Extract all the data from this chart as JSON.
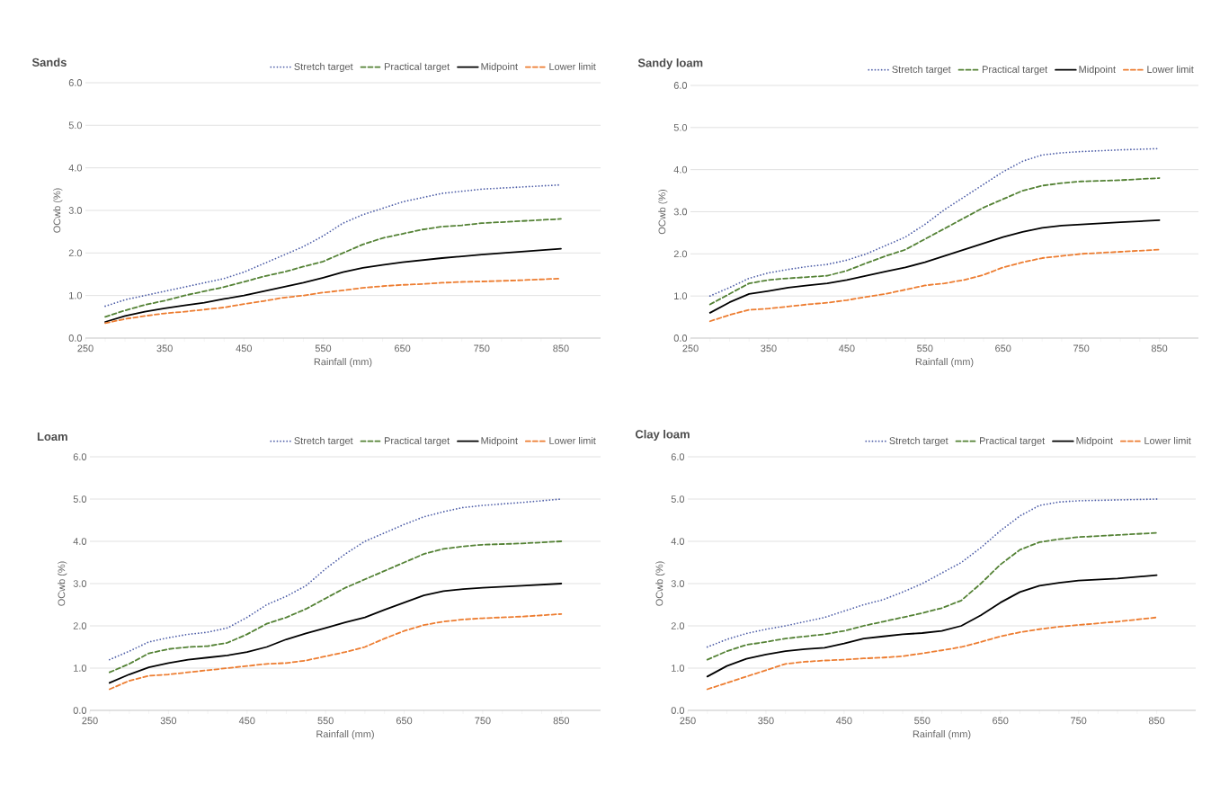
{
  "chart_data": [
    {
      "type": "line",
      "title": "Sands",
      "xlabel": "Rainfall (mm)",
      "ylabel": "OCwb (%)",
      "grid": "y",
      "legend": "top",
      "xlim": [
        250,
        900
      ],
      "ylim": [
        0,
        6
      ],
      "xticks": [
        250,
        350,
        450,
        550,
        650,
        750,
        850
      ],
      "yticks": [
        {
          "value": 0,
          "label": "0.0"
        },
        {
          "value": 1,
          "label": "1.0"
        },
        {
          "value": 2,
          "label": "2.0"
        },
        {
          "value": 3,
          "label": "3.0"
        },
        {
          "value": 4,
          "label": "4.0"
        },
        {
          "value": 5,
          "label": "5.0"
        },
        {
          "value": 6,
          "label": "6.0"
        }
      ],
      "x": [
        275,
        300,
        325,
        350,
        375,
        400,
        425,
        450,
        475,
        500,
        525,
        550,
        575,
        600,
        625,
        650,
        675,
        700,
        725,
        750,
        800,
        850
      ],
      "series": [
        {
          "name": "Stretch target",
          "color": "#4f5fa8",
          "line_style": "dotted",
          "values": [
            0.75,
            0.9,
            1.0,
            1.1,
            1.2,
            1.3,
            1.4,
            1.55,
            1.75,
            1.95,
            2.15,
            2.4,
            2.7,
            2.9,
            3.05,
            3.2,
            3.3,
            3.4,
            3.45,
            3.5,
            3.55,
            3.6
          ]
        },
        {
          "name": "Practical target",
          "color": "#548235",
          "line_style": "dashed",
          "values": [
            0.5,
            0.65,
            0.78,
            0.88,
            1.0,
            1.1,
            1.2,
            1.32,
            1.45,
            1.55,
            1.68,
            1.8,
            2.0,
            2.2,
            2.35,
            2.45,
            2.55,
            2.62,
            2.65,
            2.7,
            2.75,
            2.8
          ]
        },
        {
          "name": "Midpoint",
          "color": "#000000",
          "line_style": "solid",
          "values": [
            0.38,
            0.52,
            0.62,
            0.7,
            0.77,
            0.83,
            0.92,
            1.0,
            1.1,
            1.2,
            1.3,
            1.42,
            1.55,
            1.65,
            1.72,
            1.78,
            1.83,
            1.88,
            1.92,
            1.96,
            2.03,
            2.1
          ]
        },
        {
          "name": "Lower limit",
          "color": "#ed7d31",
          "line_style": "dashed",
          "values": [
            0.35,
            0.45,
            0.52,
            0.58,
            0.62,
            0.67,
            0.72,
            0.8,
            0.87,
            0.95,
            1.0,
            1.07,
            1.12,
            1.18,
            1.22,
            1.25,
            1.27,
            1.3,
            1.32,
            1.33,
            1.36,
            1.4
          ]
        }
      ]
    },
    {
      "type": "line",
      "title": "Sandy loam",
      "xlabel": "Rainfall (mm)",
      "ylabel": "OCwb (%)",
      "grid": "y",
      "legend": "top",
      "xlim": [
        250,
        900
      ],
      "ylim": [
        0,
        6
      ],
      "xticks": [
        250,
        350,
        450,
        550,
        650,
        750,
        850
      ],
      "yticks": [
        {
          "value": 0,
          "label": "0.0"
        },
        {
          "value": 1,
          "label": "1.0"
        },
        {
          "value": 2,
          "label": "2.0"
        },
        {
          "value": 3,
          "label": "3.0"
        },
        {
          "value": 4,
          "label": "4.0"
        },
        {
          "value": 5,
          "label": "5.0"
        },
        {
          "value": 6,
          "label": "6.0"
        }
      ],
      "x": [
        275,
        300,
        325,
        350,
        375,
        400,
        425,
        450,
        475,
        500,
        525,
        550,
        575,
        600,
        625,
        650,
        675,
        700,
        725,
        750,
        800,
        850
      ],
      "series": [
        {
          "name": "Stretch target",
          "color": "#4f5fa8",
          "line_style": "dotted",
          "values": [
            1.0,
            1.2,
            1.42,
            1.55,
            1.63,
            1.7,
            1.75,
            1.85,
            2.0,
            2.2,
            2.4,
            2.7,
            3.05,
            3.35,
            3.65,
            3.95,
            4.2,
            4.35,
            4.4,
            4.43,
            4.47,
            4.5
          ]
        },
        {
          "name": "Practical target",
          "color": "#548235",
          "line_style": "dashed",
          "values": [
            0.8,
            1.05,
            1.3,
            1.38,
            1.42,
            1.45,
            1.48,
            1.6,
            1.78,
            1.95,
            2.1,
            2.35,
            2.6,
            2.85,
            3.1,
            3.3,
            3.5,
            3.62,
            3.68,
            3.72,
            3.75,
            3.8
          ]
        },
        {
          "name": "Midpoint",
          "color": "#000000",
          "line_style": "solid",
          "values": [
            0.6,
            0.85,
            1.05,
            1.12,
            1.2,
            1.25,
            1.3,
            1.38,
            1.48,
            1.58,
            1.68,
            1.8,
            1.95,
            2.1,
            2.25,
            2.4,
            2.52,
            2.62,
            2.67,
            2.7,
            2.75,
            2.8
          ]
        },
        {
          "name": "Lower limit",
          "color": "#ed7d31",
          "line_style": "dashed",
          "values": [
            0.4,
            0.55,
            0.67,
            0.7,
            0.75,
            0.8,
            0.84,
            0.9,
            0.98,
            1.05,
            1.15,
            1.25,
            1.3,
            1.38,
            1.5,
            1.68,
            1.8,
            1.9,
            1.95,
            2.0,
            2.05,
            2.1
          ]
        }
      ]
    },
    {
      "type": "line",
      "title": "Loam",
      "xlabel": "Rainfall (mm)",
      "ylabel": "OCwb (%)",
      "grid": "y",
      "legend": "top",
      "xlim": [
        250,
        900
      ],
      "ylim": [
        0,
        6
      ],
      "xticks": [
        250,
        350,
        450,
        550,
        650,
        750,
        850
      ],
      "yticks": [
        {
          "value": 0,
          "label": "0.0"
        },
        {
          "value": 1,
          "label": "1.0"
        },
        {
          "value": 2,
          "label": "2.0"
        },
        {
          "value": 3,
          "label": "3.0"
        },
        {
          "value": 4,
          "label": "4.0"
        },
        {
          "value": 5,
          "label": "5.0"
        },
        {
          "value": 6,
          "label": "6.0"
        }
      ],
      "x": [
        275,
        300,
        325,
        350,
        375,
        400,
        425,
        450,
        475,
        500,
        525,
        550,
        575,
        600,
        625,
        650,
        675,
        700,
        725,
        750,
        800,
        850
      ],
      "series": [
        {
          "name": "Stretch target",
          "color": "#4f5fa8",
          "line_style": "dotted",
          "values": [
            1.2,
            1.4,
            1.62,
            1.72,
            1.8,
            1.85,
            1.95,
            2.2,
            2.5,
            2.7,
            2.95,
            3.35,
            3.7,
            4.0,
            4.2,
            4.4,
            4.58,
            4.7,
            4.8,
            4.85,
            4.92,
            5.0
          ]
        },
        {
          "name": "Practical target",
          "color": "#548235",
          "line_style": "dashed",
          "values": [
            0.9,
            1.1,
            1.35,
            1.45,
            1.5,
            1.52,
            1.6,
            1.8,
            2.05,
            2.2,
            2.4,
            2.65,
            2.9,
            3.1,
            3.3,
            3.5,
            3.7,
            3.82,
            3.88,
            3.92,
            3.95,
            4.0
          ]
        },
        {
          "name": "Midpoint",
          "color": "#000000",
          "line_style": "solid",
          "values": [
            0.65,
            0.85,
            1.02,
            1.12,
            1.2,
            1.25,
            1.3,
            1.38,
            1.5,
            1.68,
            1.82,
            1.95,
            2.08,
            2.2,
            2.38,
            2.55,
            2.72,
            2.82,
            2.87,
            2.9,
            2.95,
            3.0
          ]
        },
        {
          "name": "Lower limit",
          "color": "#ed7d31",
          "line_style": "dashed",
          "values": [
            0.5,
            0.7,
            0.82,
            0.85,
            0.9,
            0.95,
            1.0,
            1.05,
            1.1,
            1.12,
            1.18,
            1.28,
            1.38,
            1.5,
            1.7,
            1.88,
            2.02,
            2.1,
            2.15,
            2.18,
            2.22,
            2.28
          ]
        }
      ]
    },
    {
      "type": "line",
      "title": "Clay loam",
      "xlabel": "Rainfall (mm)",
      "ylabel": "OCwb (%)",
      "grid": "y",
      "legend": "top",
      "xlim": [
        250,
        900
      ],
      "ylim": [
        0,
        6
      ],
      "xticks": [
        250,
        350,
        450,
        550,
        650,
        750,
        850
      ],
      "yticks": [
        {
          "value": 0,
          "label": "0.0"
        },
        {
          "value": 1,
          "label": "1.0"
        },
        {
          "value": 2,
          "label": "2.0"
        },
        {
          "value": 3,
          "label": "3.0"
        },
        {
          "value": 4,
          "label": "4.0"
        },
        {
          "value": 5,
          "label": "5.0"
        },
        {
          "value": 6,
          "label": "6.0"
        }
      ],
      "x": [
        275,
        300,
        325,
        350,
        375,
        400,
        425,
        450,
        475,
        500,
        525,
        550,
        575,
        600,
        625,
        650,
        675,
        700,
        725,
        750,
        800,
        850
      ],
      "series": [
        {
          "name": "Stretch target",
          "color": "#4f5fa8",
          "line_style": "dotted",
          "values": [
            1.5,
            1.68,
            1.82,
            1.92,
            2.0,
            2.1,
            2.2,
            2.35,
            2.5,
            2.62,
            2.8,
            3.0,
            3.25,
            3.5,
            3.85,
            4.25,
            4.6,
            4.85,
            4.93,
            4.96,
            4.98,
            5.0
          ]
        },
        {
          "name": "Practical target",
          "color": "#548235",
          "line_style": "dashed",
          "values": [
            1.2,
            1.4,
            1.55,
            1.62,
            1.7,
            1.75,
            1.8,
            1.88,
            2.0,
            2.1,
            2.2,
            2.3,
            2.42,
            2.6,
            3.0,
            3.45,
            3.8,
            3.98,
            4.05,
            4.1,
            4.15,
            4.2
          ]
        },
        {
          "name": "Midpoint",
          "color": "#000000",
          "line_style": "solid",
          "values": [
            0.8,
            1.05,
            1.22,
            1.32,
            1.4,
            1.45,
            1.48,
            1.58,
            1.7,
            1.75,
            1.8,
            1.83,
            1.88,
            2.0,
            2.25,
            2.55,
            2.8,
            2.95,
            3.02,
            3.07,
            3.12,
            3.2
          ]
        },
        {
          "name": "Lower limit",
          "color": "#ed7d31",
          "line_style": "dashed",
          "values": [
            0.5,
            0.65,
            0.8,
            0.95,
            1.1,
            1.15,
            1.18,
            1.2,
            1.23,
            1.25,
            1.28,
            1.35,
            1.42,
            1.5,
            1.62,
            1.75,
            1.85,
            1.92,
            1.98,
            2.02,
            2.1,
            2.2
          ]
        }
      ]
    }
  ]
}
